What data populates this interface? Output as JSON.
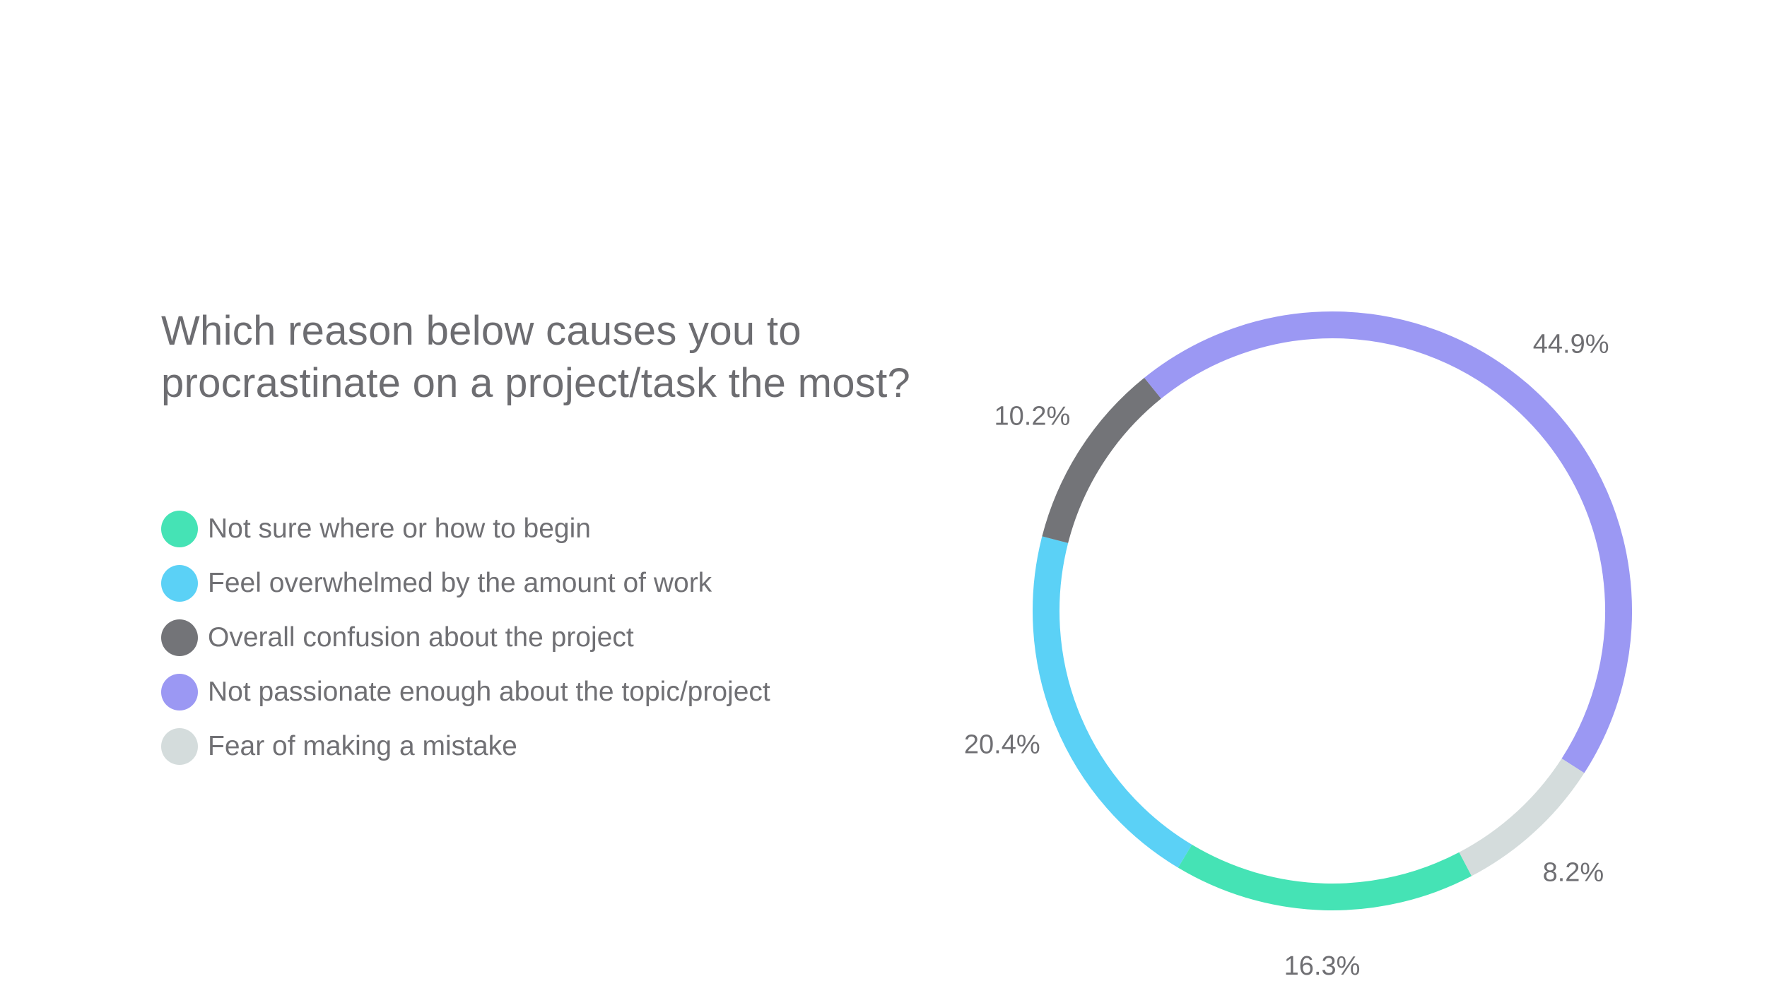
{
  "chart_data": {
    "type": "pie",
    "variant": "donut",
    "title_lines": [
      "Which reason below causes you to",
      "procrastinate on a project/task the most?"
    ],
    "legend_placement": "left",
    "slices": [
      {
        "label": "Not sure where or how to begin",
        "value": 16.3,
        "value_label": "16.3%",
        "color": "#45e3b5"
      },
      {
        "label": "Feel overwhelmed by the amount of work",
        "value": 20.4,
        "value_label": "20.4%",
        "color": "#5bd1f6"
      },
      {
        "label": "Overall confusion about the project",
        "value": 10.2,
        "value_label": "10.2%",
        "color": "#737478"
      },
      {
        "label": "Not passionate enough about the topic/project",
        "value": 44.9,
        "value_label": "44.9%",
        "color": "#9b98f3"
      },
      {
        "label": "Fear of making a mistake",
        "value": 8.2,
        "value_label": "8.2%",
        "color": "#d4dcdc"
      }
    ]
  }
}
